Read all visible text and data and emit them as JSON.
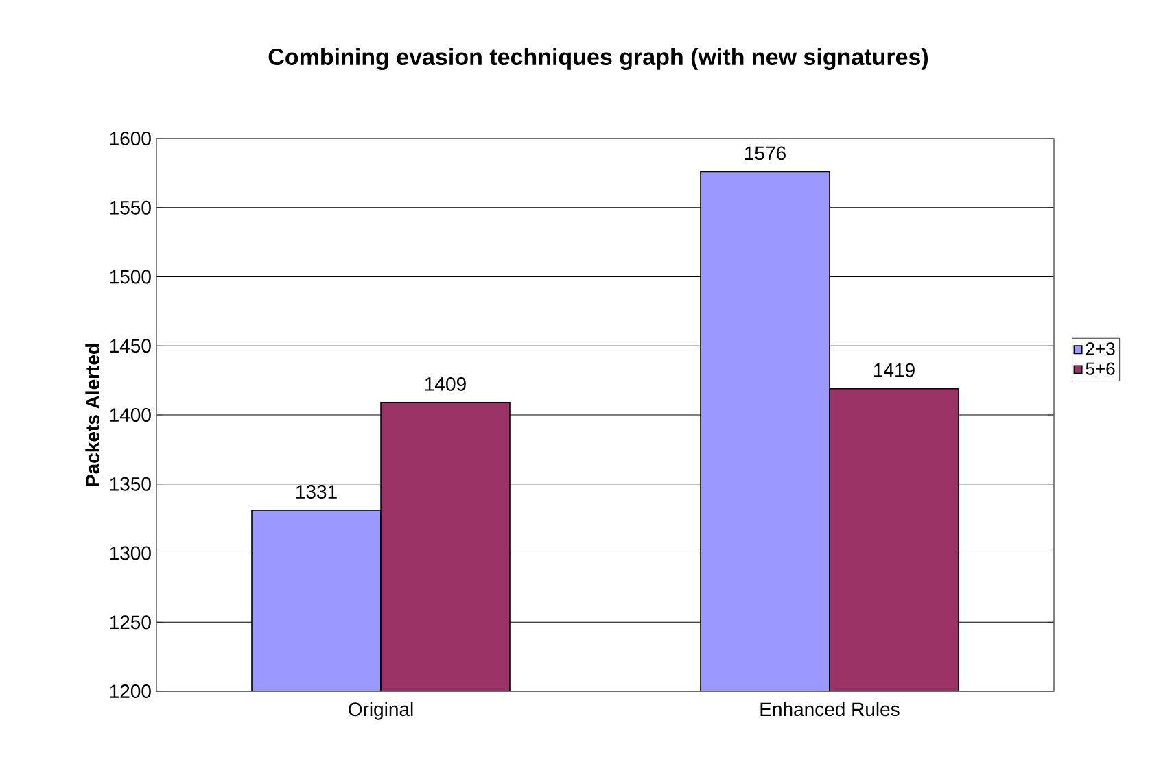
{
  "chart_data": {
    "type": "bar",
    "title": "Combining evasion techniques graph (with new signatures)",
    "ylabel": "Packets Alerted",
    "categories": [
      "Original",
      "Enhanced Rules"
    ],
    "series": [
      {
        "name": "2+3",
        "color": "#9999ff",
        "values": [
          1331,
          1576
        ]
      },
      {
        "name": "5+6",
        "color": "#993366",
        "values": [
          1409,
          1419
        ]
      }
    ],
    "ylim": [
      1200,
      1600
    ],
    "yticks": [
      1200,
      1250,
      1300,
      1350,
      1400,
      1450,
      1500,
      1550,
      1600
    ],
    "grid": "y",
    "legend": "right",
    "data_labels": true
  }
}
